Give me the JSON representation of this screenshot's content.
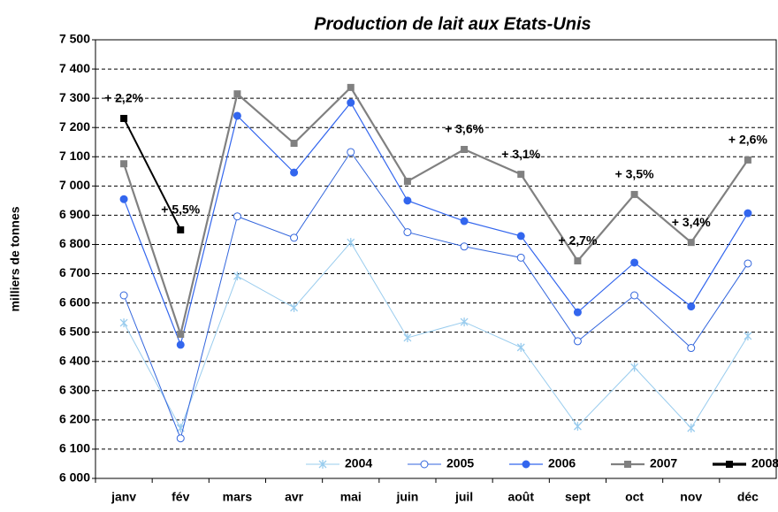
{
  "chart_data": {
    "type": "line",
    "title": "Production de lait aux Etats-Unis",
    "y_label": "milliers de tonnes",
    "categories": [
      "janv",
      "fév",
      "mars",
      "avr",
      "mai",
      "juin",
      "juil",
      "août",
      "sept",
      "oct",
      "nov",
      "déc"
    ],
    "series": [
      {
        "name": "2004",
        "color": "#99ccee",
        "marker": "star",
        "values": [
          6532,
          6172,
          6692,
          6584,
          6807,
          6481,
          6535,
          6448,
          6178,
          6380,
          6172,
          6487
        ]
      },
      {
        "name": "2005",
        "color": "#3366dd",
        "marker": "open-circle",
        "values": [
          6626,
          6137,
          6896,
          6823,
          7116,
          6842,
          6793,
          6755,
          6469,
          6626,
          6446,
          6735
        ]
      },
      {
        "name": "2006",
        "color": "#3366ee",
        "marker": "circle",
        "values": [
          6955,
          6457,
          7240,
          7046,
          7285,
          6950,
          6880,
          6829,
          6568,
          6738,
          6588,
          6907
        ]
      },
      {
        "name": "2007",
        "color": "#808080",
        "marker": "square",
        "values": [
          7076,
          6493,
          7315,
          7146,
          7337,
          7016,
          7125,
          7040,
          6744,
          6971,
          6807,
          7089
        ]
      },
      {
        "name": "2008",
        "color": "#000000",
        "marker": "square",
        "values": [
          7231,
          6850,
          null,
          null,
          null,
          null,
          null,
          null,
          null,
          null,
          null,
          null
        ]
      }
    ],
    "annotations": [
      {
        "category": "janv",
        "text": "+ 2,2%"
      },
      {
        "category": "fév",
        "text": "+ 5,5%"
      },
      {
        "category": "juil",
        "text": "+ 3,6%"
      },
      {
        "category": "août",
        "text": "+ 3,1%"
      },
      {
        "category": "sept",
        "text": "+ 2,7%"
      },
      {
        "category": "oct",
        "text": "+ 3,5%"
      },
      {
        "category": "nov",
        "text": "+ 3,4%"
      },
      {
        "category": "déc",
        "text": "+ 2,6%"
      }
    ],
    "ylim": [
      6000,
      7500
    ],
    "yticks": [
      {
        "value": 6000,
        "label": "6 000"
      },
      {
        "value": 6100,
        "label": "6 100"
      },
      {
        "value": 6200,
        "label": "6 200"
      },
      {
        "value": 6300,
        "label": "6 300"
      },
      {
        "value": 6400,
        "label": "6 400"
      },
      {
        "value": 6500,
        "label": "6 500"
      },
      {
        "value": 6600,
        "label": "6 600"
      },
      {
        "value": 6700,
        "label": "6 700"
      },
      {
        "value": 6800,
        "label": "6 800"
      },
      {
        "value": 6900,
        "label": "6 900"
      },
      {
        "value": 7000,
        "label": "7 000"
      },
      {
        "value": 7100,
        "label": "7 100"
      },
      {
        "value": 7200,
        "label": "7 200"
      },
      {
        "value": 7300,
        "label": "7 300"
      },
      {
        "value": 7400,
        "label": "7 400"
      },
      {
        "value": 7500,
        "label": "7 500"
      }
    ],
    "grid": true,
    "legend": "bottom-right"
  }
}
